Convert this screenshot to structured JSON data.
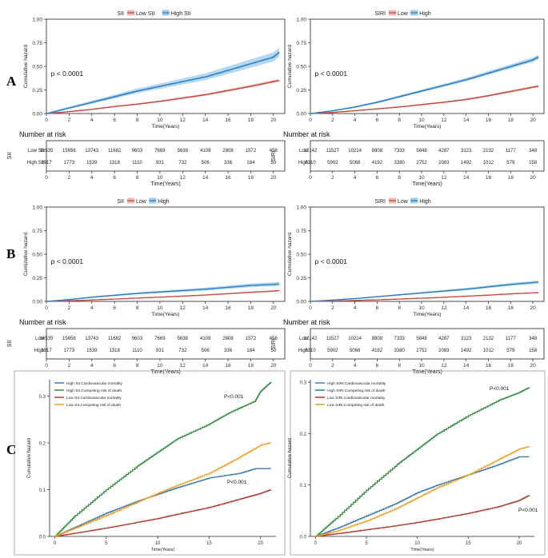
{
  "panel_labels": [
    "A",
    "B",
    "C"
  ],
  "colors": {
    "low": "#c8483e",
    "low_band": "#efb8b2",
    "high": "#2e7fc0",
    "high_band": "#9ccbee",
    "green": "#2e8b3e",
    "blue": "#3a78b0",
    "orange": "#f0a020",
    "darkred": "#b03a2e"
  },
  "chart_data": [
    {
      "id": "A1",
      "type": "line",
      "legend_title": "SII",
      "legend": [
        "Low SII",
        "High SII"
      ],
      "ylabel": "Cumulative hazard",
      "xlabel": "Time(Years)",
      "xticks": [
        "0",
        "2",
        "4",
        "6",
        "8",
        "10",
        "12",
        "14",
        "16",
        "18",
        "20"
      ],
      "yticks": [
        "0.00",
        "0.25",
        "0.50",
        "0.75",
        "1.00"
      ],
      "ylim": [
        0,
        1
      ],
      "xlim": [
        0,
        21
      ],
      "pvalue": "p < 0.0001",
      "series": [
        {
          "name": "Low SII",
          "x": [
            0,
            2,
            4,
            6,
            8,
            10,
            12,
            14,
            16,
            18,
            20,
            20.5
          ],
          "y": [
            0,
            0.02,
            0.045,
            0.075,
            0.1,
            0.13,
            0.165,
            0.2,
            0.245,
            0.29,
            0.34,
            0.35
          ]
        },
        {
          "name": "High SII",
          "x": [
            0,
            2,
            4,
            6,
            8,
            10,
            12,
            14,
            16,
            18,
            20,
            20.5
          ],
          "y": [
            0,
            0.06,
            0.12,
            0.18,
            0.24,
            0.29,
            0.34,
            0.39,
            0.46,
            0.53,
            0.6,
            0.65
          ]
        }
      ],
      "risk_table": {
        "title": "Number at risk",
        "ylabel": "SII",
        "rows": [
          {
            "label": "Low SII",
            "values": [
              "16535",
              "15656",
              "13743",
              "11682",
              "9603",
              "7669",
              "5638",
              "4109",
              "2808",
              "1572",
              "456"
            ]
          },
          {
            "label": "High SII",
            "values": [
              "1917",
              "1773",
              "1539",
              "1318",
              "1110",
              "931",
              "732",
              "506",
              "336",
              "184",
              "50"
            ]
          }
        ],
        "xticks": [
          "0",
          "2",
          "4",
          "6",
          "8",
          "10",
          "12",
          "14",
          "16",
          "18",
          "20"
        ],
        "xlabel": "Time(Years)"
      }
    },
    {
      "id": "A2",
      "type": "line",
      "legend_title": "SIRI",
      "legend": [
        "Low",
        "High"
      ],
      "ylabel": "Cumulative hazard",
      "xlabel": "Time(Years)",
      "xticks": [
        "0",
        "2",
        "4",
        "6",
        "8",
        "10",
        "12",
        "14",
        "16",
        "18",
        "20"
      ],
      "yticks": [
        "0.00",
        "0.25",
        "0.50",
        "0.75",
        "1.00"
      ],
      "ylim": [
        0,
        1
      ],
      "xlim": [
        0,
        21
      ],
      "pvalue": "p < 0.0001",
      "series": [
        {
          "name": "Low",
          "x": [
            0,
            2,
            4,
            6,
            8,
            10,
            12,
            14,
            16,
            18,
            20,
            20.5
          ],
          "y": [
            0,
            0.012,
            0.03,
            0.05,
            0.07,
            0.095,
            0.12,
            0.15,
            0.19,
            0.235,
            0.28,
            0.29
          ]
        },
        {
          "name": "High",
          "x": [
            0,
            2,
            4,
            6,
            8,
            10,
            12,
            14,
            16,
            18,
            20,
            20.5
          ],
          "y": [
            0,
            0.03,
            0.07,
            0.12,
            0.18,
            0.24,
            0.3,
            0.36,
            0.43,
            0.5,
            0.57,
            0.6
          ]
        }
      ],
      "risk_table": {
        "title": "Number at risk",
        "ylabel": "SIRI",
        "rows": [
          {
            "label": "Low",
            "values": [
              "12142",
              "11527",
              "10214",
              "8808",
              "7333",
              "5848",
              "4287",
              "3123",
              "2132",
              "1177",
              "348"
            ]
          },
          {
            "label": "High",
            "values": [
              "6310",
              "5902",
              "5068",
              "4192",
              "3380",
              "2752",
              "2083",
              "1492",
              "1012",
              "579",
              "158"
            ]
          }
        ],
        "xticks": [
          "0",
          "2",
          "4",
          "6",
          "8",
          "10",
          "12",
          "14",
          "16",
          "18",
          "20"
        ],
        "xlabel": "Time(Years)"
      }
    },
    {
      "id": "B1",
      "type": "line",
      "legend_title": "SII",
      "legend": [
        "Low",
        "High"
      ],
      "ylabel": "Cumulative hazard",
      "xlabel": "Time(Years)",
      "xticks": [
        "0",
        "2",
        "4",
        "6",
        "8",
        "10",
        "12",
        "14",
        "16",
        "18",
        "20"
      ],
      "yticks": [
        "0.00",
        "0.25",
        "0.50",
        "0.75",
        "1.00"
      ],
      "ylim": [
        0,
        1
      ],
      "xlim": [
        0,
        21
      ],
      "pvalue": "p < 0.0001",
      "series": [
        {
          "name": "Low",
          "x": [
            0,
            2,
            4,
            6,
            8,
            10,
            12,
            14,
            16,
            18,
            20,
            20.5
          ],
          "y": [
            0,
            0.007,
            0.015,
            0.025,
            0.035,
            0.045,
            0.056,
            0.068,
            0.082,
            0.097,
            0.11,
            0.115
          ]
        },
        {
          "name": "High",
          "x": [
            0,
            2,
            4,
            6,
            8,
            10,
            12,
            14,
            16,
            18,
            20,
            20.5
          ],
          "y": [
            0,
            0.02,
            0.045,
            0.065,
            0.085,
            0.1,
            0.115,
            0.13,
            0.15,
            0.17,
            0.18,
            0.185
          ]
        }
      ],
      "risk_table": {
        "title": "Number at risk",
        "ylabel": "SII",
        "rows": [
          {
            "label": "Low",
            "values": [
              "16535",
              "15656",
              "13743",
              "11682",
              "9603",
              "7669",
              "5638",
              "4109",
              "2808",
              "1572",
              "456"
            ]
          },
          {
            "label": "High",
            "values": [
              "1917",
              "1773",
              "1539",
              "1318",
              "1110",
              "931",
              "732",
              "506",
              "336",
              "184",
              "50"
            ]
          }
        ],
        "xticks": [
          "0",
          "2",
          "4",
          "6",
          "8",
          "10",
          "12",
          "14",
          "16",
          "18",
          "20"
        ],
        "xlabel": "Time(Years)"
      }
    },
    {
      "id": "B2",
      "type": "line",
      "legend_title": "SIRI",
      "legend": [
        "Low",
        "High"
      ],
      "ylabel": "Cumulative hazard",
      "xlabel": "Time(Years)",
      "xticks": [
        "0",
        "2",
        "4",
        "6",
        "8",
        "10",
        "12",
        "14",
        "16",
        "18",
        "20"
      ],
      "yticks": [
        "0.00",
        "0.25",
        "0.50",
        "0.75",
        "1.00"
      ],
      "ylim": [
        0,
        1
      ],
      "xlim": [
        0,
        21
      ],
      "pvalue": "p < 0.0001",
      "series": [
        {
          "name": "Low",
          "x": [
            0,
            2,
            4,
            6,
            8,
            10,
            12,
            14,
            16,
            18,
            20,
            20.5
          ],
          "y": [
            0,
            0.004,
            0.01,
            0.017,
            0.025,
            0.034,
            0.044,
            0.055,
            0.067,
            0.08,
            0.09,
            0.093
          ]
        },
        {
          "name": "High",
          "x": [
            0,
            2,
            4,
            6,
            8,
            10,
            12,
            14,
            16,
            18,
            20,
            20.5
          ],
          "y": [
            0,
            0.015,
            0.03,
            0.05,
            0.07,
            0.09,
            0.11,
            0.13,
            0.155,
            0.18,
            0.2,
            0.205
          ]
        }
      ],
      "risk_table": {
        "title": "Number at risk",
        "ylabel": "SIRI",
        "rows": [
          {
            "label": "Low",
            "values": [
              "12142",
              "11527",
              "10214",
              "8808",
              "7333",
              "5848",
              "4287",
              "3123",
              "2132",
              "1177",
              "348"
            ]
          },
          {
            "label": "High",
            "values": [
              "6310",
              "5902",
              "5068",
              "4192",
              "3380",
              "2752",
              "2083",
              "1492",
              "1012",
              "579",
              "158"
            ]
          }
        ],
        "xticks": [
          "0",
          "2",
          "4",
          "6",
          "8",
          "10",
          "12",
          "14",
          "16",
          "18",
          "20"
        ],
        "xlabel": "Time(Years)"
      }
    },
    {
      "id": "C1",
      "type": "line",
      "ylabel": "Cumulative hazard",
      "xlabel": "Time(Years)",
      "xticks": [
        "0",
        "5",
        "10",
        "15",
        "20"
      ],
      "yticks": [
        "0.0",
        "0.1",
        "0.2",
        "0.3"
      ],
      "ylim": [
        0,
        0.335
      ],
      "xlim": [
        -0.5,
        21.5
      ],
      "legend": [
        "High SII,Cardiovascular mortality",
        "High SII,Competing risk of death",
        "Low SII,Cardiovascular mortality",
        "Low SII,Competing risk of death"
      ],
      "annotations": [
        "P<0.001",
        "P<0.001"
      ],
      "series": [
        {
          "name": "High SII,Cardiovascular mortality",
          "x": [
            0,
            2,
            5,
            8,
            10,
            12,
            15,
            18,
            19.5,
            21
          ],
          "y": [
            0,
            0.02,
            0.05,
            0.075,
            0.09,
            0.105,
            0.125,
            0.135,
            0.145,
            0.145
          ]
        },
        {
          "name": "High SII,Competing risk of death",
          "x": [
            0,
            2,
            5,
            8,
            10,
            12,
            15,
            17,
            19.5,
            20,
            21
          ],
          "y": [
            0,
            0.045,
            0.1,
            0.15,
            0.18,
            0.21,
            0.24,
            0.265,
            0.29,
            0.31,
            0.33
          ]
        },
        {
          "name": "Low SII,Cardiovascular mortality",
          "x": [
            0,
            2,
            5,
            8,
            10,
            12,
            15,
            18,
            20,
            21
          ],
          "y": [
            0,
            0.007,
            0.018,
            0.03,
            0.038,
            0.048,
            0.062,
            0.08,
            0.092,
            0.1
          ]
        },
        {
          "name": "Low SII,Competing risk of death",
          "x": [
            0,
            2,
            5,
            8,
            10,
            12,
            15,
            18,
            20,
            21
          ],
          "y": [
            0,
            0.018,
            0.045,
            0.073,
            0.092,
            0.11,
            0.135,
            0.17,
            0.195,
            0.2
          ]
        }
      ]
    },
    {
      "id": "C2",
      "type": "line",
      "ylabel": "Cumulative hazard",
      "xlabel": "Time(Years)",
      "xticks": [
        "0",
        "5",
        "10",
        "15",
        "20"
      ],
      "yticks": [
        "0.0",
        "0.1",
        "0.2",
        "0.3"
      ],
      "ylim": [
        0,
        0.305
      ],
      "xlim": [
        -0.5,
        21.5
      ],
      "legend": [
        "High SIRI,Cardiovascular mortality",
        "High SIRI,Competing risk of death",
        "Low SIRI,Cardiovascular mortality",
        "Low SIRI,Competing risk of death"
      ],
      "annotations": [
        "P<0.001",
        "P<0.001"
      ],
      "series": [
        {
          "name": "High SIRI,Cardiovascular mortality",
          "x": [
            0,
            2,
            5,
            8,
            10,
            12,
            15,
            18,
            20,
            21
          ],
          "y": [
            0,
            0.015,
            0.04,
            0.065,
            0.085,
            0.1,
            0.12,
            0.14,
            0.155,
            0.155
          ]
        },
        {
          "name": "High SIRI,Competing risk of death",
          "x": [
            0,
            2,
            5,
            8,
            10,
            12,
            15,
            18,
            20,
            21
          ],
          "y": [
            0,
            0.035,
            0.09,
            0.14,
            0.17,
            0.2,
            0.235,
            0.265,
            0.28,
            0.29
          ]
        },
        {
          "name": "Low SIRI,Cardiovascular mortality",
          "x": [
            0,
            2,
            5,
            8,
            10,
            12,
            15,
            18,
            20,
            21
          ],
          "y": [
            0,
            0.005,
            0.013,
            0.021,
            0.027,
            0.034,
            0.045,
            0.058,
            0.07,
            0.08
          ]
        },
        {
          "name": "Low SIRI,Competing risk of death",
          "x": [
            0,
            2,
            5,
            8,
            10,
            12,
            15,
            18,
            20,
            21
          ],
          "y": [
            0,
            0.01,
            0.03,
            0.055,
            0.075,
            0.095,
            0.12,
            0.15,
            0.17,
            0.175
          ]
        }
      ]
    }
  ]
}
